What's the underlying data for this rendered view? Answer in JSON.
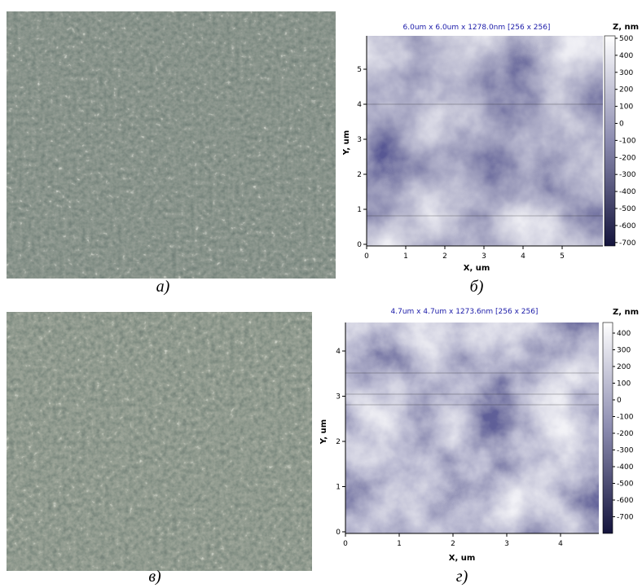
{
  "panels": [
    {
      "caption": "а)"
    },
    {
      "title": "6.0um x 6.0um x 1278.0nm [256 x 256]",
      "x_label": "X, um",
      "y_label": "Y, um",
      "x_ticks": [
        0,
        1,
        2,
        3,
        4,
        5
      ],
      "y_ticks": [
        0,
        1,
        2,
        3,
        4,
        5
      ],
      "colorbar_label": "Z, nm",
      "colorbar_ticks": [
        500,
        400,
        300,
        200,
        100,
        0,
        -100,
        -200,
        -300,
        -400,
        -500,
        -600,
        -700
      ],
      "caption": "б)"
    },
    {
      "caption": "в)"
    },
    {
      "title": "4.7um x 4.7um x 1273.6nm [256 x 256]",
      "x_label": "X, um",
      "y_label": "Y, um",
      "x_ticks": [
        0,
        1,
        2,
        3,
        4
      ],
      "y_ticks": [
        0,
        1,
        2,
        3,
        4
      ],
      "colorbar_label": "Z, nm",
      "colorbar_ticks": [
        400,
        300,
        200,
        100,
        0,
        -100,
        -200,
        -300,
        -400,
        -500,
        -600,
        -700
      ],
      "caption": "г)"
    }
  ]
}
